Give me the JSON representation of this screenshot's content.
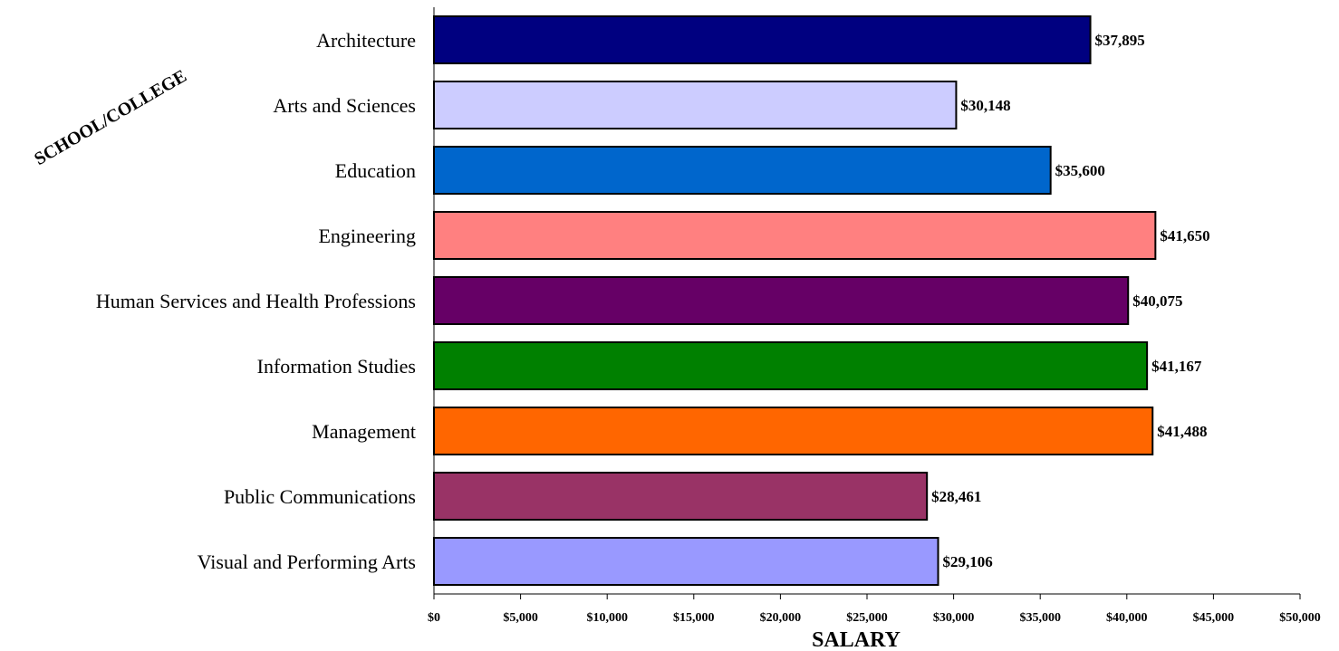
{
  "chart_data": {
    "type": "bar",
    "orientation": "horizontal",
    "xlabel": "SALARY",
    "ylabel": "SCHOOL/COLLEGE",
    "xlim": [
      0,
      50000
    ],
    "x_ticks": [
      0,
      5000,
      10000,
      15000,
      20000,
      25000,
      30000,
      35000,
      40000,
      45000,
      50000
    ],
    "x_tick_labels": [
      "$0",
      "$5,000",
      "$10,000",
      "$15,000",
      "$20,000",
      "$25,000",
      "$30,000",
      "$35,000",
      "$40,000",
      "$45,000",
      "$50,000"
    ],
    "grid": false,
    "legend": "none",
    "categories": [
      "Architecture",
      "Arts and Sciences",
      "Education",
      "Engineering",
      "Human Services and Health Professions",
      "Information Studies",
      "Management",
      "Public Communications",
      "Visual and Performing Arts"
    ],
    "values": [
      37895,
      30148,
      35600,
      41650,
      40075,
      41167,
      41488,
      28461,
      29106
    ],
    "value_labels": [
      "$37,895",
      "$30,148",
      "$35,600",
      "$41,650",
      "$40,075",
      "$41,167",
      "$41,488",
      "$28,461",
      "$29,106"
    ],
    "colors": [
      "#000080",
      "#ccccff",
      "#0066cc",
      "#ff8080",
      "#660066",
      "#008000",
      "#ff6600",
      "#993366",
      "#9999ff"
    ]
  }
}
